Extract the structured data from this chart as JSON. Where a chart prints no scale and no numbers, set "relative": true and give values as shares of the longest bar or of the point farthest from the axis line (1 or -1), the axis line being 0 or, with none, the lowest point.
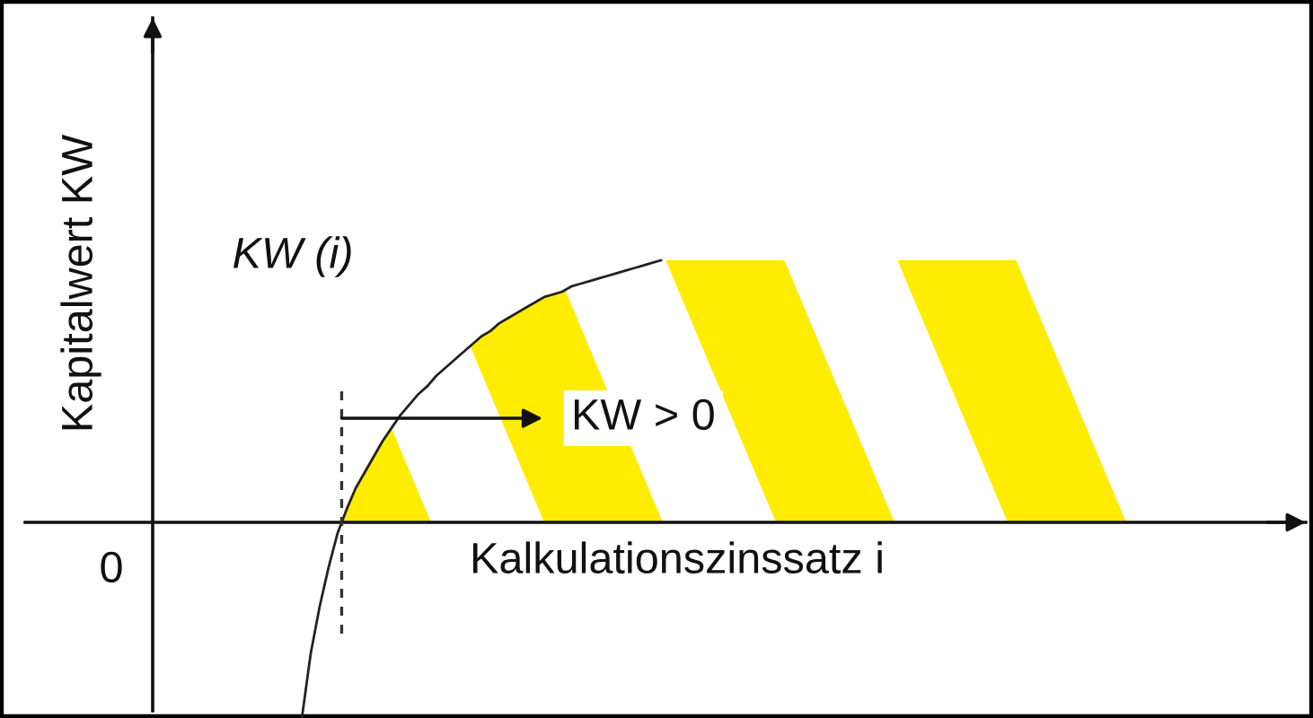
{
  "chart_data": {
    "type": "line",
    "xlabel": "Kalkulationszinssatz i",
    "ylabel": "Kapitalwert KW",
    "relative": true,
    "categories": [
      null,
      null,
      null,
      null,
      null,
      null,
      null,
      null,
      null,
      null,
      null,
      null,
      null,
      null,
      null,
      null,
      null,
      null,
      null,
      null,
      null,
      null,
      null,
      null,
      null,
      null,
      null,
      null,
      null,
      null,
      null,
      null,
      null,
      null,
      null,
      null,
      null,
      null,
      null,
      null,
      null
    ],
    "series": [
      {
        "name": "KW (i)",
        "color": "#222222",
        "values": [
          -0.75,
          -0.5,
          -0.32,
          -0.17,
          -0.04,
          0.05,
          0.13,
          0.19,
          0.25,
          0.31,
          0.36,
          0.41,
          0.45,
          0.49,
          0.52,
          0.56,
          0.59,
          0.62,
          0.65,
          0.68,
          0.71,
          0.73,
          0.76,
          0.78,
          0.8,
          0.82,
          0.84,
          0.86,
          0.87,
          0.88,
          0.9,
          0.91,
          0.92,
          0.93,
          0.94,
          0.95,
          0.96,
          0.97,
          0.98,
          0.99,
          1.0
        ]
      }
    ],
    "annotations": [
      "0",
      "KW > 0"
    ]
  }
}
